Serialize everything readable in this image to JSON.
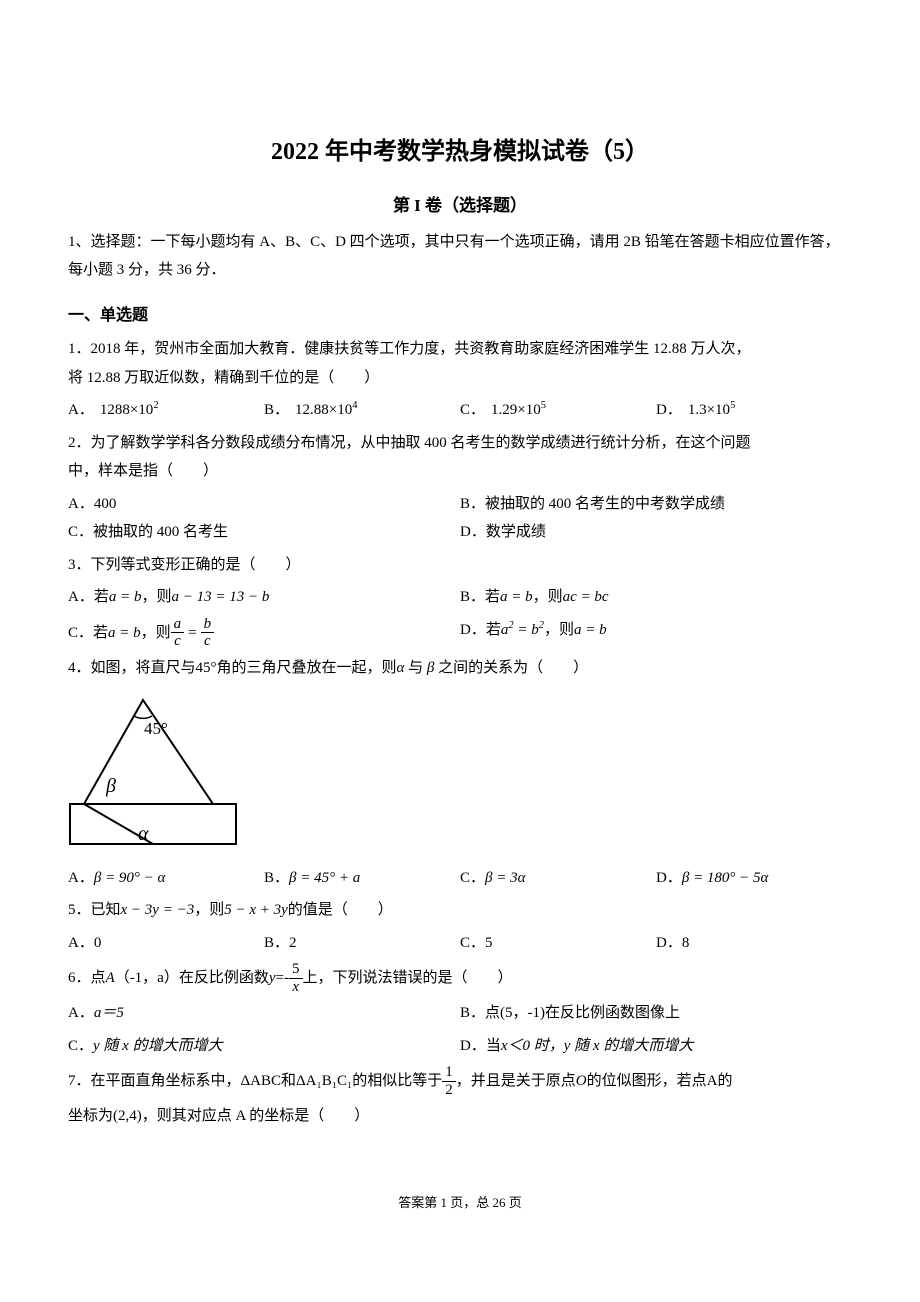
{
  "title": "2022 年中考数学热身模拟试卷（5）",
  "subtitle": "第 I 卷（选择题）",
  "instruction": "1、选择题：一下每小题均有 A、B、C、D 四个选项，其中只有一个选项正确，请用 2B 铅笔在答题卡相应位置作答，每小题 3 分，共 36 分．",
  "section_header": "一、单选题",
  "q1": {
    "line1": "1．2018 年，贺州市全面加大教育．健康扶贫等工作力度，共资教育助家庭经济困难学生 12.88 万人次，",
    "line2": "将 12.88 万取近似数，精确到千位的是（　　）",
    "optA": "A．",
    "optA_val": "1288×10",
    "optA_exp": "2",
    "optB": "B．",
    "optB_val": "12.88×10",
    "optB_exp": "4",
    "optC": "C．",
    "optC_val": "1.29×10",
    "optC_exp": "5",
    "optD": "D．",
    "optD_val": "1.3×10",
    "optD_exp": "5"
  },
  "q2": {
    "line1": "2．为了解数学学科各分数段成绩分布情况，从中抽取 400 名考生的数学成绩进行统计分析，在这个问题",
    "line2": "中，样本是指（　　）",
    "optA": "A．400",
    "optB": "B．被抽取的 400 名考生的中考数学成绩",
    "optC": "C．被抽取的 400 名考生",
    "optD": "D．数学成绩"
  },
  "q3": {
    "stem": "3．下列等式变形正确的是（　　）",
    "optA_pre": "A．若",
    "optA_mid": "a = b",
    "optA_post": "，则",
    "optA_eq": "a − 13 = 13 − b",
    "optB_pre": "B．若",
    "optB_mid": "a = b",
    "optB_post": "，则",
    "optB_eq": "ac = bc",
    "optC_pre": "C．若",
    "optC_mid": "a = b",
    "optC_post": "，则",
    "optD_pre": "D．若",
    "optD_mid1": "a",
    "optD_mid2": " = b",
    "optD_post": "，则",
    "optD_eq": "a = b",
    "frac_a": "a",
    "frac_b": "b",
    "frac_c1": "c",
    "frac_c2": "c"
  },
  "q4": {
    "stem_pre": "4．如图，将直尺与",
    "stem_angle": "45°",
    "stem_mid": "角的三角尺叠放在一起，则",
    "stem_alpha": "α",
    "stem_and": " 与 ",
    "stem_beta": "β",
    "stem_post": " 之间的关系为（　　）",
    "diagram": {
      "label45": "45°",
      "labelBeta": "β",
      "labelAlpha": "α",
      "stroke": "#000000",
      "fill": "#ffffff",
      "width": 170,
      "height": 155
    },
    "optA_pre": "A．",
    "optA_eq": "β = 90° − α",
    "optB_pre": "B．",
    "optB_eq": "β = 45° + a",
    "optC_pre": "C．",
    "optC_eq": "β = 3α",
    "optD_pre": "D．",
    "optD_eq": "β = 180° − 5α"
  },
  "q5": {
    "stem_pre": "5．已知",
    "stem_eq1": "x − 3y = −3",
    "stem_mid": "，则",
    "stem_eq2": "5 − x + 3y",
    "stem_post": "的值是（　　）",
    "optA": "A．0",
    "optB": "B．2",
    "optC": "C．5",
    "optD": "D．8"
  },
  "q6": {
    "stem_pre": "6．点 ",
    "stem_A": "A",
    "stem_coord": "（-1，a）",
    "stem_mid1": "在反比例函数 ",
    "stem_y": "y",
    "stem_eq": "=-",
    "frac_num": "5",
    "frac_den": "x",
    "stem_post": " 上，下列说法错误的是（　　）",
    "optA_pre": "A．",
    "optA_eq": "a＝5",
    "optB": "B．点(5，-1)在反比例函数图像上",
    "optC_pre": "C．",
    "optC_txt": "y 随 x 的增大而增大",
    "optD_pre": "D．当 ",
    "optD_mid": "x＜0 时，y 随 x 的增大而增大"
  },
  "q7": {
    "stem_pre": "7．在平面直角坐标系中，",
    "stem_t1": "ΔABC",
    "stem_and": " 和",
    "stem_t2": "ΔA₁B₁C₁",
    "stem_mid1": "的相似比等于 ",
    "frac_num": "1",
    "frac_den": "2",
    "stem_mid2": " ，并且是关于原点",
    "stem_O": "O",
    "stem_mid3": " 的位似图形，若点",
    "stem_Apt": " A ",
    "stem_mid4": "的",
    "line2_pre": "坐标为",
    "line2_coord": "(2,4)",
    "line2_post": "，则其对应点",
    "line2_A": " A ",
    "line2_end": "的坐标是（　　）"
  },
  "footer": "答案第 1 页，总 26 页"
}
